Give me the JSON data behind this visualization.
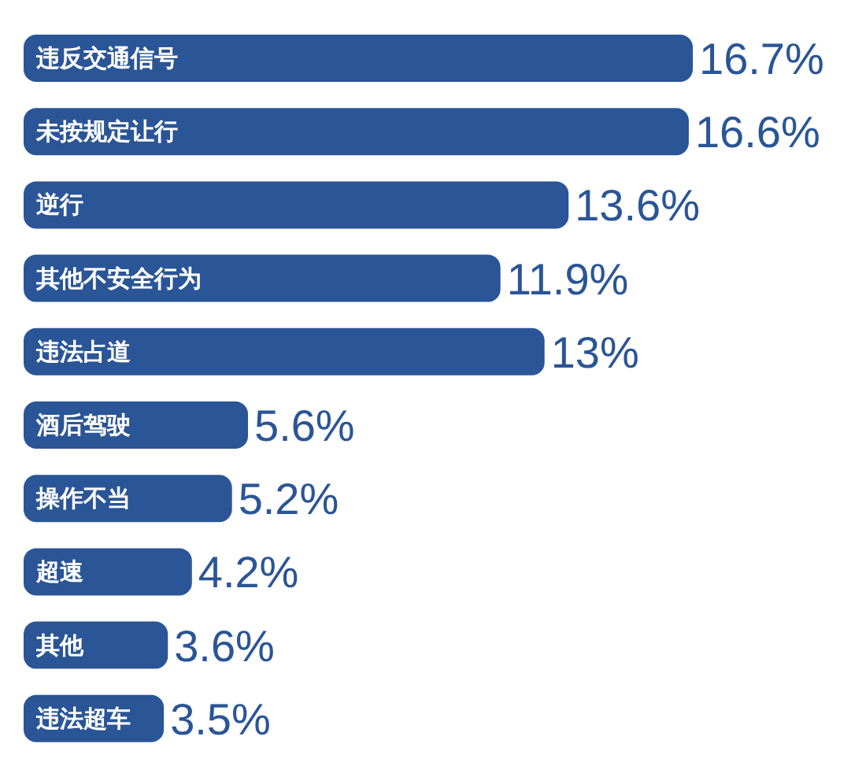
{
  "chart_data": {
    "type": "bar",
    "orientation": "horizontal",
    "categories": [
      "违反交通信号",
      "未按规定让行",
      "逆行",
      "其他不安全行为",
      "违法占道",
      "酒后驾驶",
      "操作不当",
      "超速",
      "其他",
      "违法超车"
    ],
    "values": [
      16.7,
      16.6,
      13.6,
      11.9,
      13,
      5.6,
      5.2,
      4.2,
      3.6,
      3.5
    ],
    "color": "#2a5596",
    "value_labels": [
      "16.7%",
      "16.6%",
      "13.6%",
      "11.9%",
      "13%",
      "5.6%",
      "5.2%",
      "4.2%",
      "3.6%",
      "3.5%"
    ]
  }
}
